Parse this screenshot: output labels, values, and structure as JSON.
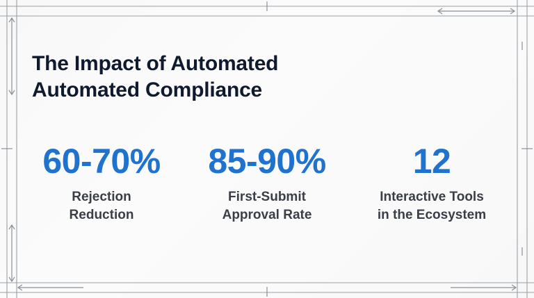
{
  "slide": {
    "title_line_1": "The Impact of Automated",
    "title_line_2": "Automated Compliance",
    "stats": [
      {
        "value": "60-70%",
        "label_line_1": "Rejection",
        "label_line_2": "Reduction"
      },
      {
        "value": "85-90%",
        "label_line_1": "First-Submit",
        "label_line_2": "Approval Rate"
      },
      {
        "value": "12",
        "label_line_1": "Interactive Tools",
        "label_line_2": "in the Ecosystem"
      }
    ]
  },
  "colors": {
    "accent": "#1f73cf",
    "title": "#0f1a2e",
    "label": "#3a3f47",
    "frame": "#9aa0a6"
  }
}
